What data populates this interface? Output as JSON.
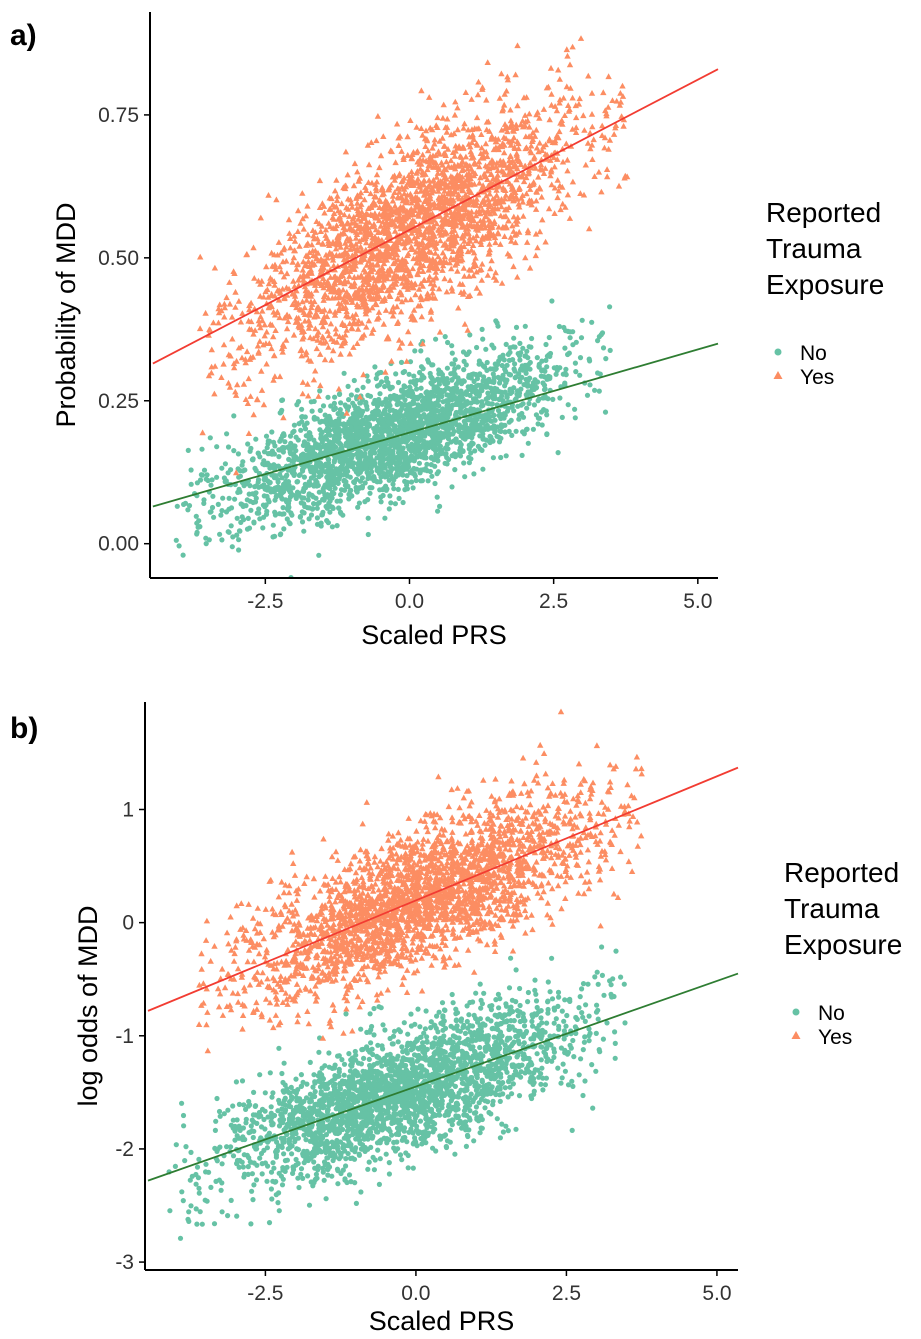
{
  "chart_data": [
    {
      "panel": "a)",
      "type": "scatter",
      "xlabel": "Scaled PRS",
      "ylabel": "Probability of MDD",
      "xticks": [
        "-2.5",
        "0.0",
        "2.5",
        "5.0"
      ],
      "yticks": [
        "0.00",
        "0.25",
        "0.50",
        "0.75"
      ],
      "xlim": [
        -4.5,
        5.35
      ],
      "ylim": [
        -0.06,
        0.93
      ],
      "legend_title": [
        "Reported",
        "Trauma",
        "Exposure"
      ],
      "legend_placement": "right",
      "series": [
        {
          "name": "No",
          "marker": "circle",
          "color": "#66c2a5",
          "line_color": "#2e7d32",
          "fit_line": [
            [
              -4.45,
              0.065
            ],
            [
              5.35,
              0.35
            ]
          ],
          "cloud": {
            "x_range": [
              -4.1,
              3.5
            ],
            "center_at_x0": 0.2,
            "slope": 0.035,
            "sd": 0.05
          }
        },
        {
          "name": "Yes",
          "marker": "triangle",
          "color": "#fc8d62",
          "line_color": "#f23c32",
          "fit_line": [
            [
              -4.45,
              0.315
            ],
            [
              5.35,
              0.83
            ]
          ],
          "cloud": {
            "x_range": [
              -3.7,
              3.8
            ],
            "center_at_x0": 0.545,
            "slope": 0.054,
            "sd": 0.075
          }
        }
      ]
    },
    {
      "panel": "b)",
      "type": "scatter",
      "xlabel": "Scaled PRS",
      "ylabel": "log odds of MDD",
      "xticks": [
        "-2.5",
        "0.0",
        "2.5",
        "5.0"
      ],
      "yticks": [
        "-3",
        "-2",
        "-1",
        "0",
        "1"
      ],
      "xlim": [
        -4.5,
        5.35
      ],
      "ylim": [
        -3.07,
        1.95
      ],
      "legend_title": [
        "Reported",
        "Trauma",
        "Exposure"
      ],
      "legend_placement": "right",
      "series": [
        {
          "name": "No",
          "marker": "circle",
          "color": "#66c2a5",
          "line_color": "#2e7d32",
          "fit_line": [
            [
              -4.45,
              -2.28
            ],
            [
              5.35,
              -0.45
            ]
          ],
          "cloud": {
            "x_range": [
              -4.1,
              3.5
            ],
            "center_at_x0": -1.45,
            "slope": 0.19,
            "sd": 0.27
          }
        },
        {
          "name": "Yes",
          "marker": "triangle",
          "color": "#fc8d62",
          "line_color": "#f23c32",
          "fit_line": [
            [
              -4.45,
              -0.78
            ],
            [
              5.35,
              1.37
            ]
          ],
          "cloud": {
            "x_range": [
              -3.7,
              3.8
            ],
            "center_at_x0": 0.2,
            "slope": 0.22,
            "sd": 0.3
          }
        }
      ]
    }
  ]
}
